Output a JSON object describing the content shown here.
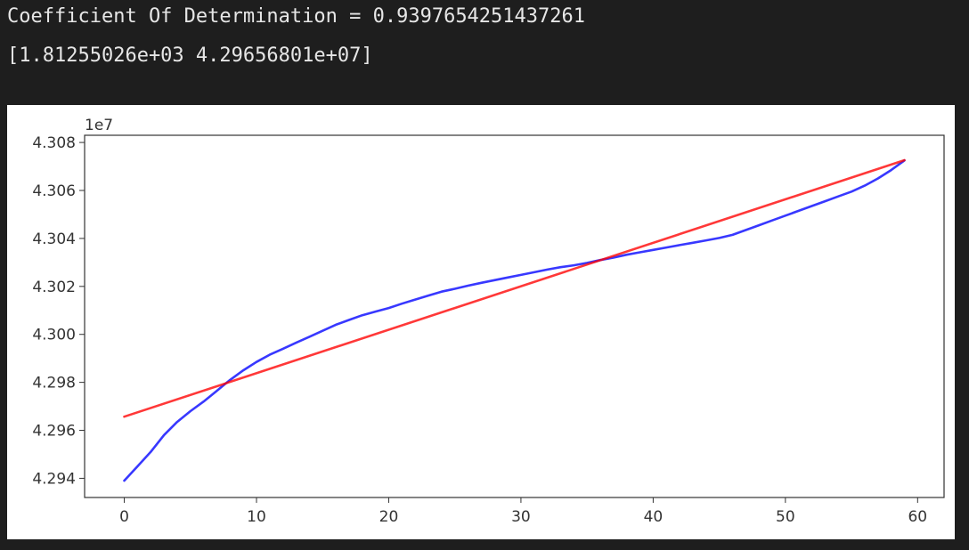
{
  "output": {
    "line1": "Coefficient Of Determination = 0.9397654251437261",
    "line2": "[1.81255026e+03 4.29656801e+07]"
  },
  "chart_data": {
    "type": "line",
    "title": "",
    "xlabel": "",
    "ylabel": "",
    "offset_label": "1e7",
    "xlim": [
      -3,
      62
    ],
    "ylim": [
      42932000,
      43083000
    ],
    "xticks": [
      0,
      10,
      20,
      30,
      40,
      50,
      60
    ],
    "yticks": [
      42940000,
      42960000,
      42980000,
      43000000,
      43020000,
      43040000,
      43060000,
      43080000
    ],
    "ytick_labels": [
      "4.294",
      "4.296",
      "4.298",
      "4.300",
      "4.302",
      "4.304",
      "4.306",
      "4.308"
    ],
    "grid": false,
    "series": [
      {
        "color": "#0000ff",
        "x": [
          0,
          1,
          2,
          3,
          4,
          5,
          6,
          7,
          8,
          9,
          10,
          11,
          12,
          13,
          14,
          15,
          16,
          17,
          18,
          19,
          20,
          21,
          22,
          23,
          24,
          25,
          26,
          27,
          28,
          29,
          30,
          31,
          32,
          33,
          34,
          35,
          36,
          37,
          38,
          39,
          40,
          41,
          42,
          43,
          44,
          45,
          46,
          47,
          48,
          49,
          50,
          51,
          52,
          53,
          54,
          55,
          56,
          57,
          58,
          59
        ],
        "values": [
          42939000,
          42945000,
          42951000,
          42958000,
          42963500,
          42968000,
          42972000,
          42976500,
          42981000,
          42985000,
          42988500,
          42991500,
          42994000,
          42996500,
          42999000,
          43001500,
          43004000,
          43006000,
          43008000,
          43009500,
          43011000,
          43012800,
          43014500,
          43016200,
          43017800,
          43019000,
          43020300,
          43021500,
          43022600,
          43023700,
          43024800,
          43025900,
          43027000,
          43028000,
          43028800,
          43029800,
          43031000,
          43032000,
          43033200,
          43034200,
          43035200,
          43036200,
          43037200,
          43038200,
          43039200,
          43040200,
          43041500,
          43043500,
          43045500,
          43047500,
          43049500,
          43051500,
          43053500,
          43055500,
          43057500,
          43059500,
          43062000,
          43065000,
          43068500,
          43072500
        ]
      },
      {
        "color": "#ff0000",
        "x": [
          0,
          59
        ],
        "values": [
          42965680,
          43072620
        ]
      }
    ]
  }
}
